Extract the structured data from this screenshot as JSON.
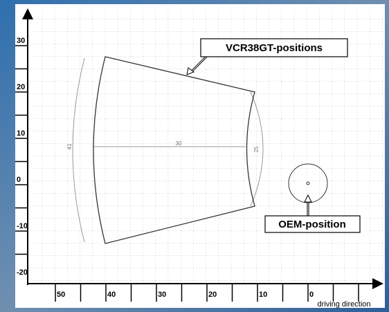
{
  "y_ticks": [
    "30",
    "20",
    "10",
    "0",
    "-10",
    "-20"
  ],
  "x_ticks": [
    "50",
    "40",
    "30",
    "20",
    "10",
    "0"
  ],
  "x_axis_label": "driving direction",
  "dimensions": {
    "left_arc": "41",
    "width": "30",
    "right_arc": "25"
  },
  "callouts": {
    "vcr": "VCR38GT-positions",
    "oem": "OEM-position"
  }
}
